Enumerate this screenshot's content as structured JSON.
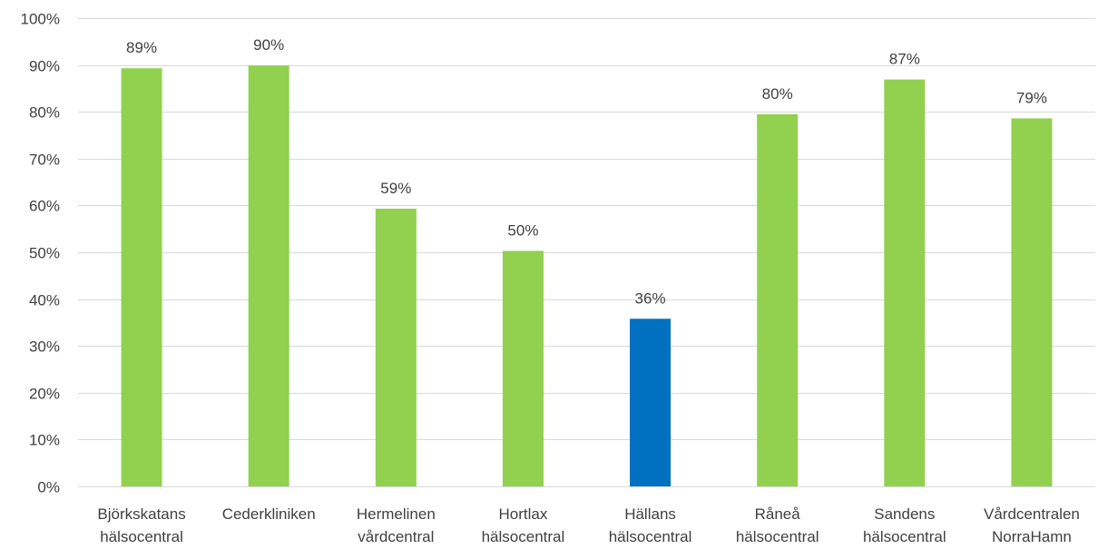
{
  "chart_data": {
    "type": "bar",
    "title": "",
    "xlabel": "",
    "ylabel": "",
    "ylim": [
      0,
      100
    ],
    "y_tick_step": 10,
    "y_tick_format": "percent",
    "grid": true,
    "legend": "none",
    "categories": [
      [
        "Björkskatans",
        "hälsocentral"
      ],
      [
        "Cederkliniken"
      ],
      [
        "Hermelinen",
        "vårdcentral"
      ],
      [
        "Hortlax",
        "hälsocentral"
      ],
      [
        "Hällans",
        "hälsocentral"
      ],
      [
        "Råneå",
        "hälsocentral"
      ],
      [
        "Sandens",
        "hälsocentral"
      ],
      [
        "Vårdcentralen",
        "NorraHamn"
      ]
    ],
    "values": [
      89.3,
      89.9,
      59.3,
      50.3,
      35.8,
      79.5,
      86.9,
      78.6
    ],
    "data_labels": [
      "89%",
      "90%",
      "59%",
      "50%",
      "36%",
      "80%",
      "87%",
      "79%"
    ],
    "colors": {
      "default_bar": "#92d050",
      "highlight_bar": "#0070c0",
      "gridline": "#d9d9d9",
      "text": "#404040"
    },
    "highlight_index": 4
  }
}
